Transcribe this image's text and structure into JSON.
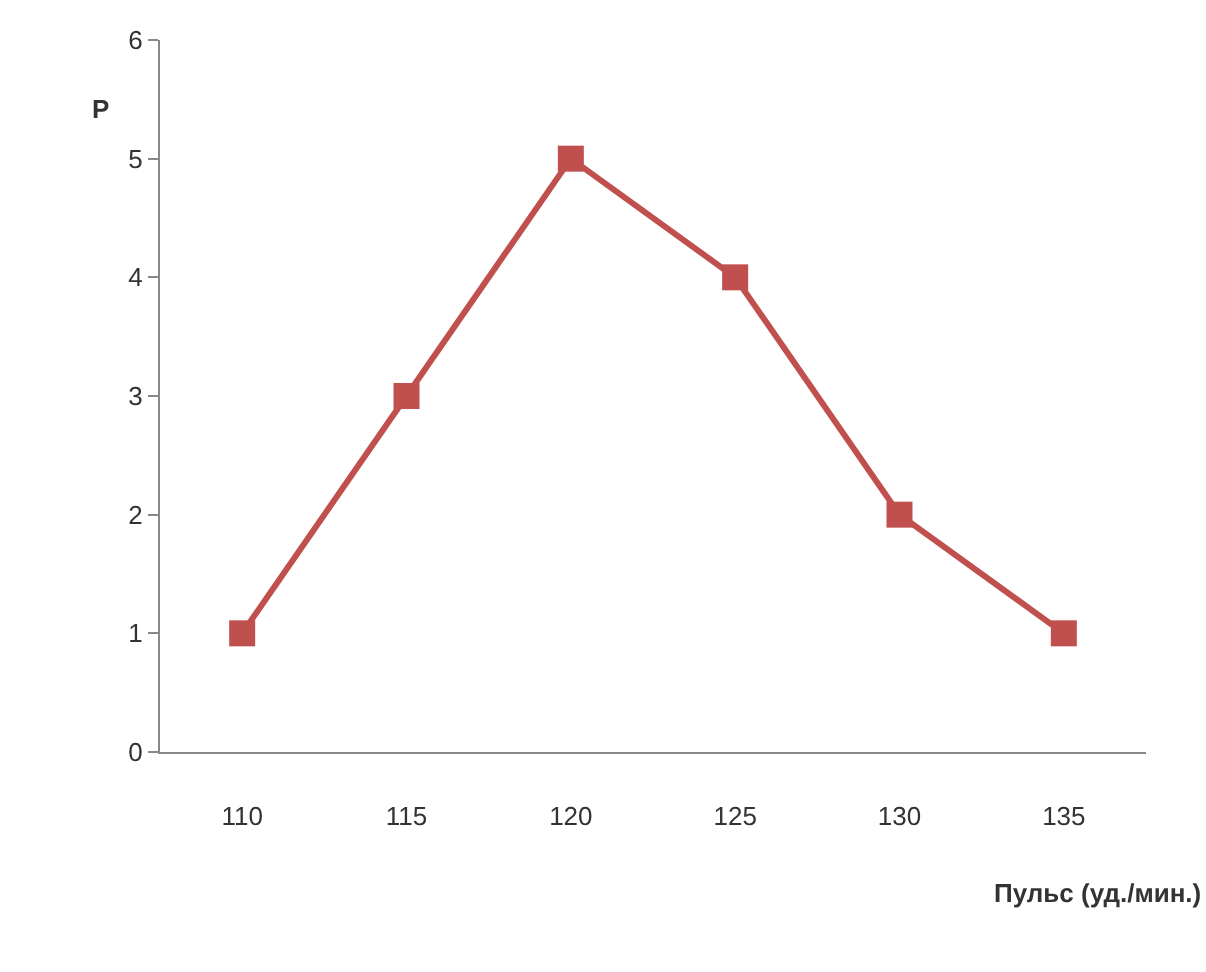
{
  "chart_data": {
    "type": "line",
    "xlabel": "Пульс (уд./мин.)",
    "ylabel": "P",
    "categories": [
      "110",
      "115",
      "120",
      "125",
      "130",
      "135"
    ],
    "series": [
      {
        "color": "#c0504d",
        "values": [
          1,
          3,
          5,
          4,
          2,
          1
        ]
      }
    ],
    "ylim": [
      0,
      6
    ],
    "yticks": [
      0,
      1,
      2,
      3,
      4,
      5,
      6
    ],
    "grid": false,
    "legend": false,
    "marker": "square",
    "line_style": "solid"
  }
}
